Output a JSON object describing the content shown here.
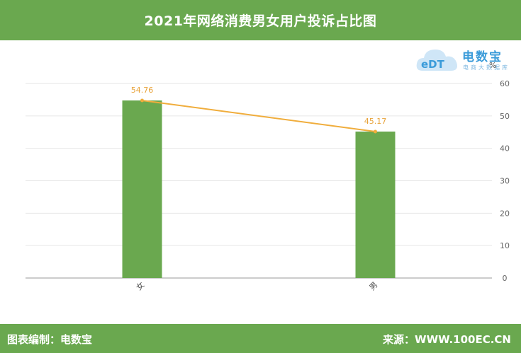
{
  "header": {
    "title": "2021年网络消费男女用户投诉占比图"
  },
  "footer": {
    "left_text": "图表编制：电数宝",
    "right_text": "来源：WWW.100EC.CN"
  },
  "logo": {
    "mark": "eDT",
    "brand": "电数宝",
    "tagline": "电商大数据库"
  },
  "colors": {
    "bar": "#6aa84f",
    "line": "#f0ad3c",
    "header": "#6aa84f"
  },
  "chart_data": {
    "type": "bar",
    "categories": [
      "女",
      "男"
    ],
    "series": [
      {
        "type": "bar",
        "values": [
          54.76,
          45.17
        ]
      },
      {
        "type": "line",
        "values": [
          54.76,
          45.17
        ]
      }
    ],
    "data_labels": [
      "54.76",
      "45.17"
    ],
    "y_axis": {
      "position": "right",
      "unit": "%",
      "ylim": [
        0,
        60
      ],
      "ticks": [
        0,
        10,
        20,
        30,
        40,
        50,
        60
      ]
    },
    "grid": true
  }
}
